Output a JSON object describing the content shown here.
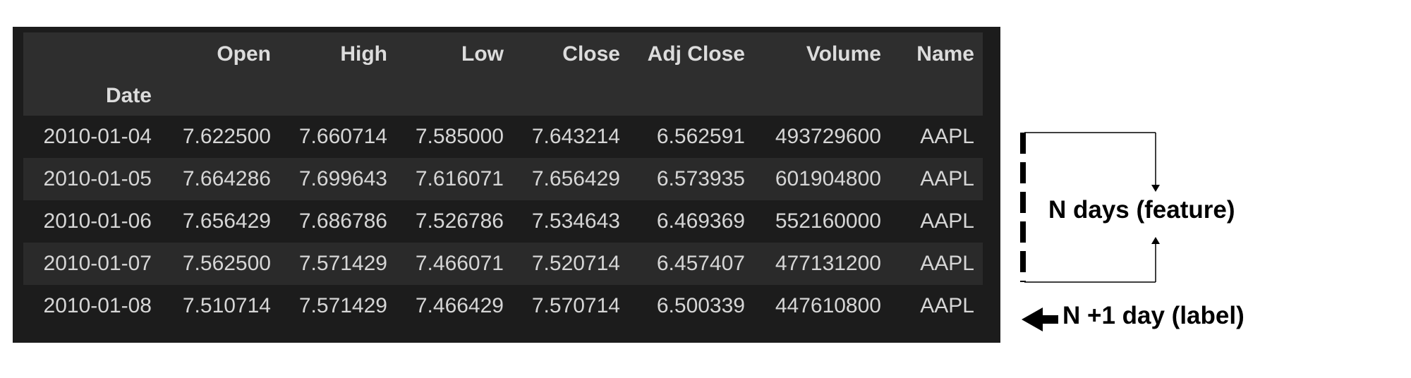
{
  "table": {
    "columns": [
      "",
      "Open",
      "High",
      "Low",
      "Close",
      "Adj Close",
      "Volume",
      "Name"
    ],
    "index_name": "Date",
    "rows": [
      [
        "2010-01-04",
        "7.622500",
        "7.660714",
        "7.585000",
        "7.643214",
        "6.562591",
        "493729600",
        "AAPL"
      ],
      [
        "2010-01-05",
        "7.664286",
        "7.699643",
        "7.616071",
        "7.656429",
        "6.573935",
        "601904800",
        "AAPL"
      ],
      [
        "2010-01-06",
        "7.656429",
        "7.686786",
        "7.526786",
        "7.534643",
        "6.469369",
        "552160000",
        "AAPL"
      ],
      [
        "2010-01-07",
        "7.562500",
        "7.571429",
        "7.466071",
        "7.520714",
        "6.457407",
        "477131200",
        "AAPL"
      ],
      [
        "2010-01-08",
        "7.510714",
        "7.571429",
        "7.466429",
        "7.570714",
        "6.500339",
        "447610800",
        "AAPL"
      ]
    ]
  },
  "annotations": {
    "feature_label": "N days (feature)",
    "label_label": "N +1 day (label)"
  },
  "colors": {
    "table_bg": "#1c1c1c",
    "header_bg": "#2e2e2e",
    "row_alt_bg": "#2a2a2a",
    "text": "#d6d6d6",
    "annotation": "#000000"
  }
}
